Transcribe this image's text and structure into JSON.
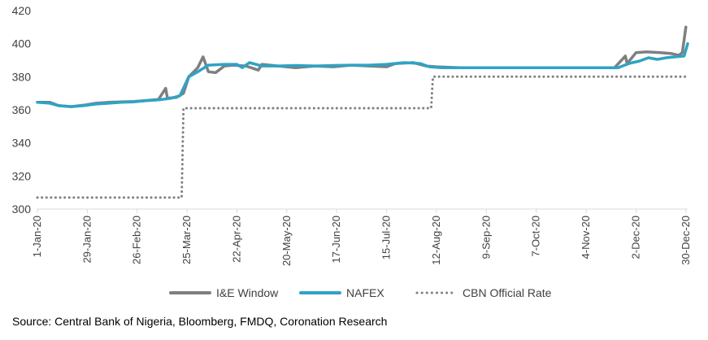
{
  "chart_data": {
    "type": "line",
    "title": "",
    "xlabel": "",
    "ylabel": "",
    "ylim": [
      300,
      420
    ],
    "yticks": [
      300,
      320,
      340,
      360,
      380,
      400,
      420
    ],
    "x_range": [
      "2020-01-01",
      "2020-12-31"
    ],
    "xtick_labels": [
      "1-Jan-20",
      "29-Jan-20",
      "26-Feb-20",
      "25-Mar-20",
      "22-Apr-20",
      "20-May-20",
      "17-Jun-20",
      "15-Jul-20",
      "12-Aug-20",
      "9-Sep-20",
      "7-Oct-20",
      "4-Nov-20",
      "2-Dec-20",
      "30-Dec-20"
    ],
    "xtick_dates": [
      "2020-01-01",
      "2020-01-29",
      "2020-02-26",
      "2020-03-25",
      "2020-04-22",
      "2020-05-20",
      "2020-06-17",
      "2020-07-15",
      "2020-08-12",
      "2020-09-09",
      "2020-10-07",
      "2020-11-04",
      "2020-12-02",
      "2020-12-30"
    ],
    "grid": false,
    "legend_position": "bottom",
    "series": [
      {
        "name": "I&E Window",
        "color": "#7f7f7f",
        "style": "solid",
        "points": [
          [
            "2020-01-01",
            364.5
          ],
          [
            "2020-01-08",
            364.5
          ],
          [
            "2020-01-13",
            362.5
          ],
          [
            "2020-01-20",
            361.9
          ],
          [
            "2020-01-27",
            362.8
          ],
          [
            "2020-02-03",
            364.0
          ],
          [
            "2020-02-10",
            364.5
          ],
          [
            "2020-02-17",
            364.8
          ],
          [
            "2020-02-24",
            365.0
          ],
          [
            "2020-03-02",
            365.6
          ],
          [
            "2020-03-09",
            366.3
          ],
          [
            "2020-03-13",
            373.0
          ],
          [
            "2020-03-14",
            367.0
          ],
          [
            "2020-03-19",
            367.5
          ],
          [
            "2020-03-23",
            370.0
          ],
          [
            "2020-03-26",
            380.0
          ],
          [
            "2020-03-31",
            385.5
          ],
          [
            "2020-04-03",
            392.0
          ],
          [
            "2020-04-06",
            383.0
          ],
          [
            "2020-04-10",
            382.5
          ],
          [
            "2020-04-15",
            386.5
          ],
          [
            "2020-04-20",
            387.0
          ],
          [
            "2020-04-27",
            386.5
          ],
          [
            "2020-05-04",
            384.0
          ],
          [
            "2020-05-06",
            387.5
          ],
          [
            "2020-05-15",
            386.5
          ],
          [
            "2020-05-25",
            385.5
          ],
          [
            "2020-06-05",
            386.5
          ],
          [
            "2020-06-15",
            386.0
          ],
          [
            "2020-06-25",
            387.0
          ],
          [
            "2020-07-05",
            386.5
          ],
          [
            "2020-07-15",
            386.0
          ],
          [
            "2020-07-20",
            388.0
          ],
          [
            "2020-07-30",
            388.5
          ],
          [
            "2020-08-06",
            386.5
          ],
          [
            "2020-08-12",
            386.0
          ],
          [
            "2020-08-25",
            385.5
          ],
          [
            "2020-09-10",
            385.5
          ],
          [
            "2020-10-10",
            385.5
          ],
          [
            "2020-11-10",
            385.5
          ],
          [
            "2020-11-20",
            385.5
          ],
          [
            "2020-11-26",
            392.5
          ],
          [
            "2020-11-27",
            388.0
          ],
          [
            "2020-12-02",
            394.5
          ],
          [
            "2020-12-08",
            395.0
          ],
          [
            "2020-12-16",
            394.5
          ],
          [
            "2020-12-22",
            394.0
          ],
          [
            "2020-12-26",
            393.0
          ],
          [
            "2020-12-28",
            394.5
          ],
          [
            "2020-12-30",
            410.0
          ]
        ]
      },
      {
        "name": "NAFEX",
        "color": "#2fa3c4",
        "style": "solid",
        "points": [
          [
            "2020-01-01",
            364.5
          ],
          [
            "2020-01-08",
            364.0
          ],
          [
            "2020-01-13",
            362.5
          ],
          [
            "2020-01-20",
            361.9
          ],
          [
            "2020-01-27",
            362.5
          ],
          [
            "2020-02-03",
            363.5
          ],
          [
            "2020-02-10",
            364.0
          ],
          [
            "2020-02-17",
            364.5
          ],
          [
            "2020-02-24",
            364.8
          ],
          [
            "2020-03-02",
            365.5
          ],
          [
            "2020-03-09",
            366.0
          ],
          [
            "2020-03-16",
            367.0
          ],
          [
            "2020-03-21",
            368.5
          ],
          [
            "2020-03-26",
            380.0
          ],
          [
            "2020-03-31",
            383.0
          ],
          [
            "2020-04-06",
            387.0
          ],
          [
            "2020-04-15",
            387.5
          ],
          [
            "2020-04-22",
            387.5
          ],
          [
            "2020-04-25",
            385.5
          ],
          [
            "2020-04-29",
            388.5
          ],
          [
            "2020-05-06",
            386.5
          ],
          [
            "2020-05-15",
            386.5
          ],
          [
            "2020-05-25",
            386.8
          ],
          [
            "2020-06-05",
            386.5
          ],
          [
            "2020-06-15",
            386.8
          ],
          [
            "2020-06-25",
            387.0
          ],
          [
            "2020-07-05",
            387.0
          ],
          [
            "2020-07-15",
            387.5
          ],
          [
            "2020-07-25",
            388.5
          ],
          [
            "2020-08-03",
            388.0
          ],
          [
            "2020-08-08",
            386.0
          ],
          [
            "2020-08-15",
            385.5
          ],
          [
            "2020-08-25",
            385.5
          ],
          [
            "2020-09-10",
            385.5
          ],
          [
            "2020-10-10",
            385.5
          ],
          [
            "2020-11-10",
            385.5
          ],
          [
            "2020-11-22",
            385.5
          ],
          [
            "2020-11-28",
            388.0
          ],
          [
            "2020-12-04",
            389.5
          ],
          [
            "2020-12-09",
            391.5
          ],
          [
            "2020-12-14",
            390.5
          ],
          [
            "2020-12-19",
            391.5
          ],
          [
            "2020-12-24",
            392.0
          ],
          [
            "2020-12-29",
            392.5
          ],
          [
            "2020-12-31",
            400.0
          ]
        ]
      },
      {
        "name": "CBN Official Rate",
        "color": "#808080",
        "style": "dotted",
        "points": [
          [
            "2020-01-01",
            306.95
          ],
          [
            "2020-03-22",
            306.95
          ],
          [
            "2020-03-23",
            361.0
          ],
          [
            "2020-08-09",
            361.0
          ],
          [
            "2020-08-10",
            380.0
          ],
          [
            "2020-12-31",
            380.0
          ]
        ]
      }
    ]
  },
  "source_text": "Source: Central Bank of Nigeria, Bloomberg, FMDQ, Coronation Research",
  "colors": {
    "axis": "#d9d9d9",
    "text": "#404040"
  }
}
